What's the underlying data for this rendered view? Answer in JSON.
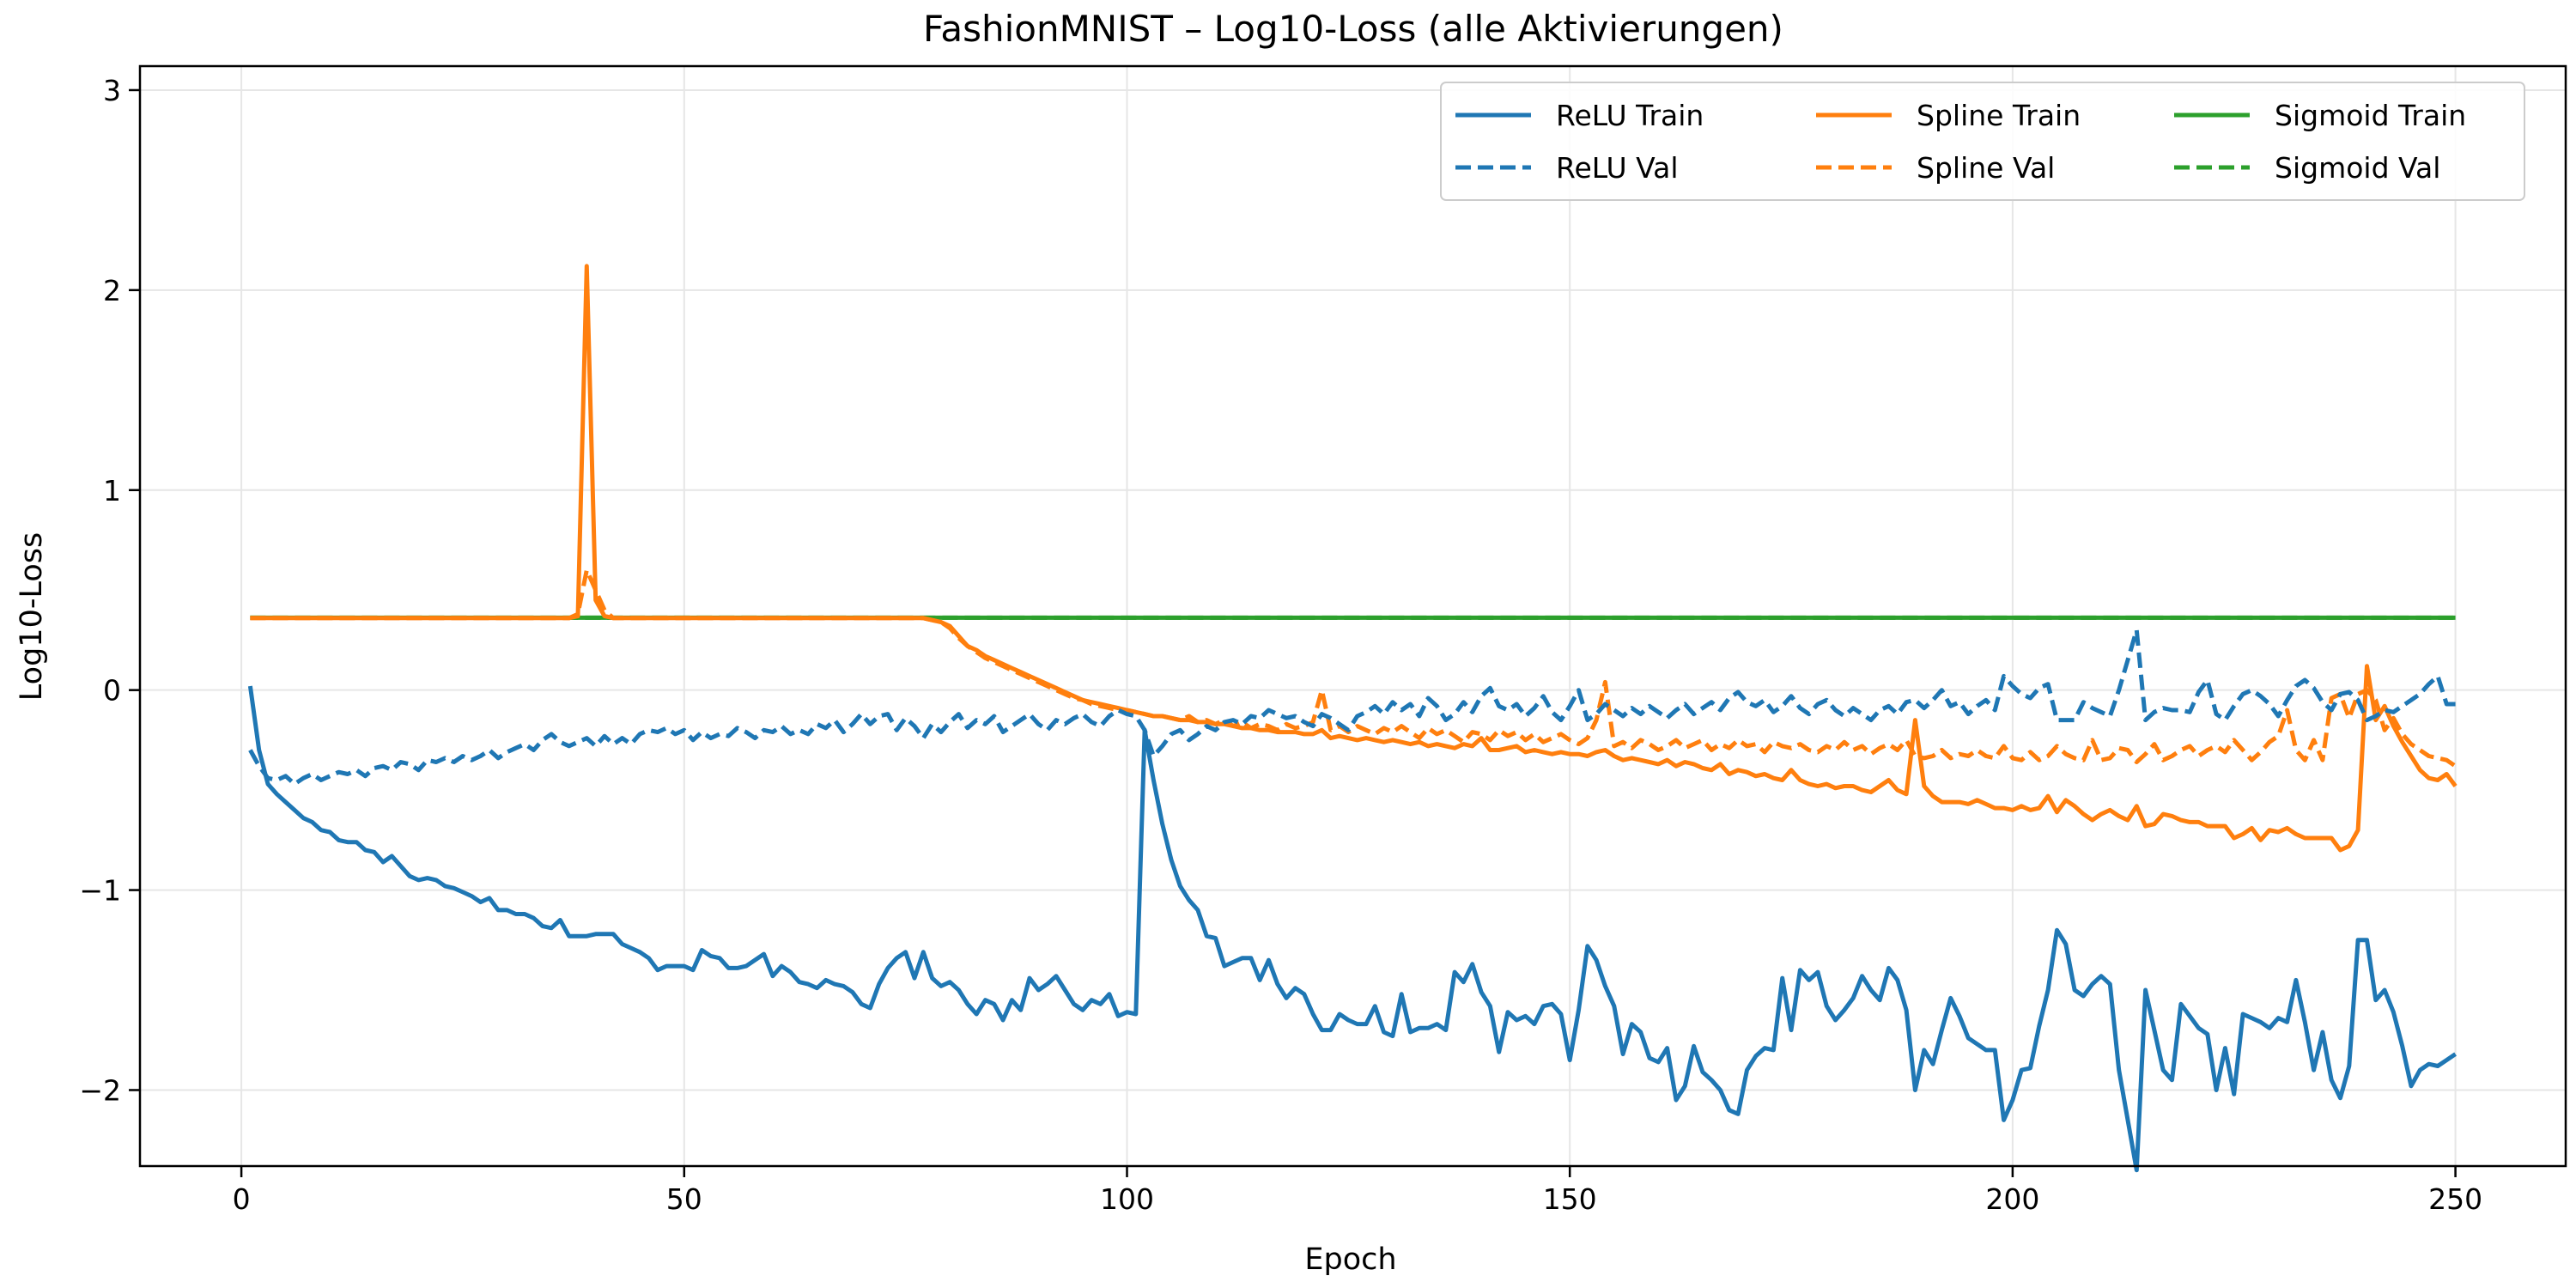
{
  "chart_data": {
    "type": "line",
    "title": "FashionMNIST – Log10-Loss (alle Aktivierungen)",
    "xlabel": "Epoch",
    "ylabel": "Log10-Loss",
    "xlim": [
      -11.45,
      262.45
    ],
    "ylim": [
      -2.38,
      3.12
    ],
    "xticks": [
      0,
      50,
      100,
      150,
      200,
      250
    ],
    "yticks": [
      -2,
      -1,
      0,
      1,
      2,
      3
    ],
    "grid": true,
    "legend_placement": "top-right",
    "x_start": 1,
    "x_end": 250,
    "series": [
      {
        "name": "ReLU Train",
        "color": "#1f77b4",
        "style": "solid",
        "values": [
          0.02,
          -0.3,
          -0.47,
          -0.52,
          -0.56,
          -0.6,
          -0.64,
          -0.66,
          -0.7,
          -0.71,
          -0.75,
          -0.76,
          -0.76,
          -0.8,
          -0.81,
          -0.86,
          -0.83,
          -0.88,
          -0.93,
          -0.95,
          -0.94,
          -0.95,
          -0.98,
          -0.99,
          -1.01,
          -1.03,
          -1.06,
          -1.04,
          -1.1,
          -1.1,
          -1.12,
          -1.12,
          -1.14,
          -1.18,
          -1.19,
          -1.15,
          -1.23,
          -1.23,
          -1.23,
          -1.22,
          -1.22,
          -1.22,
          -1.27,
          -1.29,
          -1.31,
          -1.34,
          -1.4,
          -1.38,
          -1.38,
          -1.38,
          -1.4,
          -1.3,
          -1.33,
          -1.34,
          -1.39,
          -1.39,
          -1.38,
          -1.35,
          -1.32,
          -1.43,
          -1.38,
          -1.41,
          -1.46,
          -1.47,
          -1.49,
          -1.45,
          -1.47,
          -1.48,
          -1.51,
          -1.57,
          -1.59,
          -1.47,
          -1.39,
          -1.34,
          -1.31,
          -1.44,
          -1.31,
          -1.44,
          -1.48,
          -1.46,
          -1.5,
          -1.57,
          -1.62,
          -1.55,
          -1.57,
          -1.65,
          -1.55,
          -1.6,
          -1.44,
          -1.5,
          -1.47,
          -1.43,
          -1.5,
          -1.57,
          -1.6,
          -1.55,
          -1.57,
          -1.52,
          -1.63,
          -1.61,
          -1.62,
          -0.2,
          -0.45,
          -0.67,
          -0.85,
          -0.98,
          -1.05,
          -1.1,
          -1.23,
          -1.24,
          -1.38,
          -1.36,
          -1.34,
          -1.34,
          -1.45,
          -1.35,
          -1.47,
          -1.54,
          -1.49,
          -1.52,
          -1.62,
          -1.7,
          -1.7,
          -1.62,
          -1.65,
          -1.67,
          -1.67,
          -1.58,
          -1.71,
          -1.73,
          -1.52,
          -1.71,
          -1.69,
          -1.69,
          -1.67,
          -1.7,
          -1.41,
          -1.46,
          -1.37,
          -1.51,
          -1.58,
          -1.81,
          -1.61,
          -1.65,
          -1.63,
          -1.67,
          -1.58,
          -1.57,
          -1.62,
          -1.85,
          -1.6,
          -1.28,
          -1.35,
          -1.48,
          -1.58,
          -1.82,
          -1.67,
          -1.71,
          -1.84,
          -1.86,
          -1.79,
          -2.05,
          -1.98,
          -1.78,
          -1.91,
          -1.95,
          -2.0,
          -2.1,
          -2.12,
          -1.9,
          -1.83,
          -1.79,
          -1.8,
          -1.44,
          -1.7,
          -1.4,
          -1.45,
          -1.41,
          -1.58,
          -1.65,
          -1.6,
          -1.54,
          -1.43,
          -1.5,
          -1.55,
          -1.39,
          -1.45,
          -1.6,
          -2.0,
          -1.8,
          -1.87,
          -1.7,
          -1.54,
          -1.63,
          -1.74,
          -1.77,
          -1.8,
          -1.8,
          -2.15,
          -2.05,
          -1.9,
          -1.89,
          -1.68,
          -1.5,
          -1.2,
          -1.27,
          -1.5,
          -1.53,
          -1.47,
          -1.43,
          -1.47,
          -1.9,
          -2.15,
          -2.4,
          -1.5,
          -1.7,
          -1.9,
          -1.95,
          -1.57,
          -1.63,
          -1.69,
          -1.72,
          -2.0,
          -1.79,
          -2.02,
          -1.62,
          -1.64,
          -1.66,
          -1.69,
          -1.64,
          -1.66,
          -1.45,
          -1.66,
          -1.9,
          -1.71,
          -1.95,
          -2.04,
          -1.88,
          -1.25,
          -1.25,
          -1.55,
          -1.5,
          -1.61,
          -1.78,
          -1.98,
          -1.9,
          -1.87,
          -1.88,
          -1.85,
          -1.82
        ]
      },
      {
        "name": "ReLU Val",
        "color": "#1f77b4",
        "style": "dashed",
        "values": [
          -0.3,
          -0.38,
          -0.44,
          -0.45,
          -0.43,
          -0.47,
          -0.44,
          -0.42,
          -0.45,
          -0.43,
          -0.41,
          -0.42,
          -0.4,
          -0.43,
          -0.39,
          -0.38,
          -0.4,
          -0.36,
          -0.37,
          -0.4,
          -0.35,
          -0.36,
          -0.34,
          -0.36,
          -0.33,
          -0.35,
          -0.33,
          -0.3,
          -0.34,
          -0.31,
          -0.29,
          -0.27,
          -0.3,
          -0.25,
          -0.22,
          -0.26,
          -0.28,
          -0.26,
          -0.24,
          -0.28,
          -0.23,
          -0.27,
          -0.24,
          -0.27,
          -0.22,
          -0.2,
          -0.21,
          -0.19,
          -0.22,
          -0.2,
          -0.25,
          -0.21,
          -0.24,
          -0.22,
          -0.23,
          -0.19,
          -0.21,
          -0.24,
          -0.2,
          -0.21,
          -0.18,
          -0.22,
          -0.2,
          -0.22,
          -0.17,
          -0.19,
          -0.15,
          -0.21,
          -0.17,
          -0.12,
          -0.17,
          -0.13,
          -0.12,
          -0.2,
          -0.14,
          -0.18,
          -0.24,
          -0.17,
          -0.21,
          -0.16,
          -0.12,
          -0.19,
          -0.15,
          -0.17,
          -0.13,
          -0.21,
          -0.18,
          -0.15,
          -0.12,
          -0.17,
          -0.2,
          -0.15,
          -0.17,
          -0.14,
          -0.12,
          -0.16,
          -0.18,
          -0.13,
          -0.1,
          -0.12,
          -0.13,
          -0.2,
          -0.33,
          -0.28,
          -0.22,
          -0.2,
          -0.25,
          -0.22,
          -0.18,
          -0.2,
          -0.16,
          -0.15,
          -0.17,
          -0.13,
          -0.14,
          -0.1,
          -0.12,
          -0.14,
          -0.13,
          -0.16,
          -0.18,
          -0.12,
          -0.14,
          -0.17,
          -0.2,
          -0.13,
          -0.11,
          -0.08,
          -0.12,
          -0.06,
          -0.1,
          -0.07,
          -0.13,
          -0.04,
          -0.08,
          -0.15,
          -0.12,
          -0.06,
          -0.11,
          -0.03,
          0.01,
          -0.08,
          -0.1,
          -0.07,
          -0.13,
          -0.09,
          -0.03,
          -0.11,
          -0.15,
          -0.08,
          0.0,
          -0.15,
          -0.12,
          -0.07,
          -0.1,
          -0.13,
          -0.09,
          -0.12,
          -0.08,
          -0.11,
          -0.14,
          -0.1,
          -0.07,
          -0.12,
          -0.09,
          -0.06,
          -0.1,
          -0.04,
          -0.01,
          -0.06,
          -0.08,
          -0.05,
          -0.11,
          -0.08,
          -0.03,
          -0.09,
          -0.12,
          -0.07,
          -0.05,
          -0.1,
          -0.13,
          -0.09,
          -0.12,
          -0.15,
          -0.1,
          -0.08,
          -0.12,
          -0.06,
          -0.05,
          -0.09,
          -0.05,
          0.0,
          -0.08,
          -0.06,
          -0.12,
          -0.08,
          -0.05,
          -0.1,
          0.07,
          0.02,
          -0.02,
          -0.04,
          0.01,
          0.03,
          -0.15,
          -0.15,
          -0.15,
          -0.06,
          -0.09,
          -0.11,
          -0.13,
          0.0,
          0.15,
          0.3,
          -0.15,
          -0.11,
          -0.09,
          -0.1,
          -0.1,
          -0.11,
          -0.01,
          0.05,
          -0.12,
          -0.15,
          -0.08,
          -0.02,
          0.0,
          -0.03,
          -0.07,
          -0.13,
          -0.05,
          0.02,
          0.05,
          0.01,
          -0.06,
          -0.1,
          -0.02,
          -0.01,
          -0.05,
          -0.15,
          -0.13,
          -0.1,
          -0.11,
          -0.08,
          -0.05,
          -0.02,
          0.03,
          0.07,
          -0.07,
          -0.07
        ]
      },
      {
        "name": "Spline Train",
        "color": "#ff7f0e",
        "style": "solid",
        "values": [
          0.36,
          0.36,
          0.36,
          0.36,
          0.36,
          0.36,
          0.36,
          0.36,
          0.36,
          0.36,
          0.36,
          0.36,
          0.36,
          0.36,
          0.36,
          0.36,
          0.36,
          0.36,
          0.36,
          0.36,
          0.36,
          0.36,
          0.36,
          0.36,
          0.36,
          0.36,
          0.36,
          0.36,
          0.36,
          0.36,
          0.36,
          0.36,
          0.36,
          0.36,
          0.36,
          0.36,
          0.36,
          0.37,
          2.12,
          0.45,
          0.37,
          0.36,
          0.36,
          0.36,
          0.36,
          0.36,
          0.36,
          0.36,
          0.36,
          0.36,
          0.36,
          0.36,
          0.36,
          0.36,
          0.36,
          0.36,
          0.36,
          0.36,
          0.36,
          0.36,
          0.36,
          0.36,
          0.36,
          0.36,
          0.36,
          0.36,
          0.36,
          0.36,
          0.36,
          0.36,
          0.36,
          0.36,
          0.36,
          0.36,
          0.36,
          0.36,
          0.36,
          0.35,
          0.34,
          0.32,
          0.27,
          0.22,
          0.2,
          0.17,
          0.15,
          0.13,
          0.11,
          0.09,
          0.07,
          0.05,
          0.03,
          0.01,
          -0.01,
          -0.03,
          -0.05,
          -0.06,
          -0.07,
          -0.08,
          -0.09,
          -0.1,
          -0.11,
          -0.12,
          -0.13,
          -0.13,
          -0.14,
          -0.15,
          -0.15,
          -0.16,
          -0.16,
          -0.17,
          -0.17,
          -0.18,
          -0.19,
          -0.19,
          -0.2,
          -0.2,
          -0.21,
          -0.21,
          -0.21,
          -0.22,
          -0.22,
          -0.2,
          -0.24,
          -0.23,
          -0.24,
          -0.25,
          -0.24,
          -0.25,
          -0.26,
          -0.25,
          -0.26,
          -0.27,
          -0.26,
          -0.28,
          -0.27,
          -0.28,
          -0.29,
          -0.27,
          -0.28,
          -0.24,
          -0.3,
          -0.3,
          -0.29,
          -0.28,
          -0.31,
          -0.3,
          -0.31,
          -0.32,
          -0.31,
          -0.32,
          -0.32,
          -0.33,
          -0.31,
          -0.3,
          -0.33,
          -0.35,
          -0.34,
          -0.35,
          -0.36,
          -0.37,
          -0.35,
          -0.38,
          -0.36,
          -0.37,
          -0.39,
          -0.4,
          -0.37,
          -0.42,
          -0.4,
          -0.41,
          -0.43,
          -0.42,
          -0.44,
          -0.45,
          -0.4,
          -0.45,
          -0.47,
          -0.48,
          -0.47,
          -0.49,
          -0.48,
          -0.48,
          -0.5,
          -0.51,
          -0.48,
          -0.45,
          -0.5,
          -0.52,
          -0.15,
          -0.48,
          -0.53,
          -0.56,
          -0.56,
          -0.56,
          -0.57,
          -0.55,
          -0.57,
          -0.59,
          -0.59,
          -0.6,
          -0.58,
          -0.6,
          -0.59,
          -0.53,
          -0.61,
          -0.55,
          -0.58,
          -0.62,
          -0.65,
          -0.62,
          -0.6,
          -0.63,
          -0.65,
          -0.58,
          -0.68,
          -0.67,
          -0.62,
          -0.63,
          -0.65,
          -0.66,
          -0.66,
          -0.68,
          -0.68,
          -0.68,
          -0.74,
          -0.72,
          -0.69,
          -0.75,
          -0.7,
          -0.71,
          -0.69,
          -0.72,
          -0.74,
          -0.74,
          -0.74,
          -0.74,
          -0.8,
          -0.78,
          -0.7,
          0.12,
          -0.15,
          -0.08,
          -0.18,
          -0.26,
          -0.33,
          -0.4,
          -0.44,
          -0.45,
          -0.42,
          -0.48
        ]
      },
      {
        "name": "Spline Val",
        "color": "#ff7f0e",
        "style": "dashed",
        "values": [
          0.36,
          0.36,
          0.36,
          0.36,
          0.36,
          0.36,
          0.36,
          0.36,
          0.36,
          0.36,
          0.36,
          0.36,
          0.36,
          0.36,
          0.36,
          0.36,
          0.36,
          0.36,
          0.36,
          0.36,
          0.36,
          0.36,
          0.36,
          0.36,
          0.36,
          0.36,
          0.36,
          0.36,
          0.36,
          0.36,
          0.36,
          0.36,
          0.36,
          0.36,
          0.36,
          0.36,
          0.36,
          0.38,
          0.6,
          0.5,
          0.4,
          0.36,
          0.36,
          0.36,
          0.36,
          0.36,
          0.36,
          0.36,
          0.36,
          0.36,
          0.36,
          0.36,
          0.36,
          0.36,
          0.36,
          0.36,
          0.36,
          0.36,
          0.36,
          0.36,
          0.36,
          0.36,
          0.36,
          0.36,
          0.36,
          0.36,
          0.36,
          0.36,
          0.36,
          0.36,
          0.36,
          0.36,
          0.36,
          0.36,
          0.36,
          0.36,
          0.36,
          0.35,
          0.34,
          0.31,
          0.26,
          0.22,
          0.19,
          0.16,
          0.14,
          0.12,
          0.1,
          0.08,
          0.06,
          0.04,
          0.02,
          0.0,
          -0.02,
          -0.04,
          -0.05,
          -0.07,
          -0.08,
          -0.09,
          -0.1,
          -0.1,
          -0.11,
          -0.12,
          -0.13,
          -0.13,
          -0.14,
          -0.15,
          -0.13,
          -0.16,
          -0.15,
          -0.17,
          -0.15,
          -0.18,
          -0.16,
          -0.19,
          -0.17,
          -0.18,
          -0.2,
          -0.17,
          -0.19,
          -0.18,
          -0.16,
          0.0,
          -0.2,
          -0.18,
          -0.21,
          -0.18,
          -0.2,
          -0.22,
          -0.19,
          -0.21,
          -0.18,
          -0.21,
          -0.24,
          -0.19,
          -0.22,
          -0.2,
          -0.23,
          -0.26,
          -0.21,
          -0.22,
          -0.25,
          -0.2,
          -0.23,
          -0.21,
          -0.25,
          -0.22,
          -0.26,
          -0.24,
          -0.22,
          -0.25,
          -0.27,
          -0.24,
          -0.15,
          0.04,
          -0.28,
          -0.26,
          -0.29,
          -0.25,
          -0.27,
          -0.3,
          -0.28,
          -0.25,
          -0.29,
          -0.27,
          -0.25,
          -0.3,
          -0.27,
          -0.29,
          -0.25,
          -0.28,
          -0.27,
          -0.31,
          -0.26,
          -0.28,
          -0.29,
          -0.27,
          -0.3,
          -0.31,
          -0.28,
          -0.3,
          -0.26,
          -0.3,
          -0.28,
          -0.32,
          -0.29,
          -0.27,
          -0.3,
          -0.25,
          -0.33,
          -0.34,
          -0.33,
          -0.3,
          -0.34,
          -0.32,
          -0.33,
          -0.3,
          -0.33,
          -0.34,
          -0.28,
          -0.34,
          -0.35,
          -0.31,
          -0.35,
          -0.33,
          -0.28,
          -0.32,
          -0.34,
          -0.35,
          -0.25,
          -0.35,
          -0.34,
          -0.29,
          -0.3,
          -0.36,
          -0.32,
          -0.27,
          -0.35,
          -0.33,
          -0.3,
          -0.28,
          -0.33,
          -0.3,
          -0.28,
          -0.31,
          -0.25,
          -0.3,
          -0.35,
          -0.31,
          -0.26,
          -0.23,
          -0.1,
          -0.3,
          -0.35,
          -0.25,
          -0.35,
          -0.04,
          -0.02,
          -0.14,
          -0.02,
          0.0,
          -0.05,
          -0.2,
          -0.14,
          -0.22,
          -0.27,
          -0.3,
          -0.33,
          -0.34,
          -0.35,
          -0.38
        ]
      },
      {
        "name": "Sigmoid Train",
        "color": "#2ca02c",
        "style": "solid",
        "constant_value": 0.362
      },
      {
        "name": "Sigmoid Val",
        "color": "#2ca02c",
        "style": "dashed",
        "constant_value": 0.362
      }
    ]
  }
}
